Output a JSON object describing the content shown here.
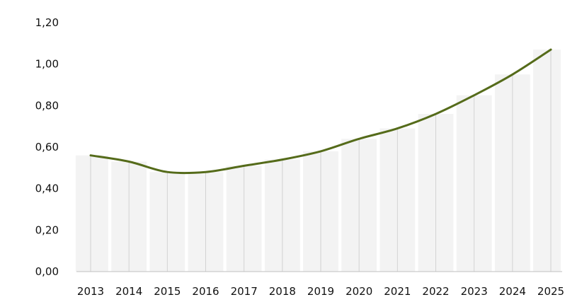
{
  "chart_data": {
    "type": "line",
    "title": "",
    "xlabel": "",
    "ylabel": "",
    "x": [
      "2013",
      "2014",
      "2015",
      "2016",
      "2017",
      "2018",
      "2019",
      "2020",
      "2021",
      "2022",
      "2023",
      "2024",
      "2025"
    ],
    "series": [
      {
        "values": [
          0.56,
          0.53,
          0.48,
          0.48,
          0.51,
          0.54,
          0.58,
          0.64,
          0.69,
          0.76,
          0.85,
          0.95,
          1.07
        ]
      }
    ],
    "ylim": [
      0,
      1.2
    ],
    "yticks": [
      "0,00",
      "0,20",
      "0,40",
      "0,60",
      "0,80",
      "1,00",
      "1,20"
    ],
    "grid": false,
    "legend": "none",
    "colors": {
      "line": "#556b1a",
      "bar_fill": "#f3f3f3",
      "drop_line": "#d2d2d2",
      "axis_line": "#bfbfbf"
    }
  }
}
